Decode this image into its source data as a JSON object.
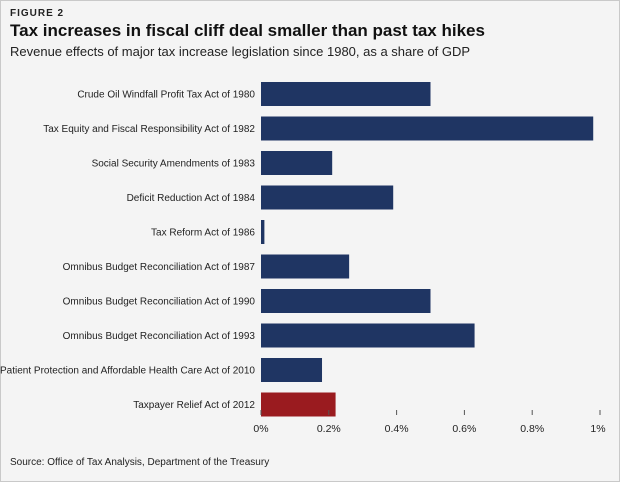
{
  "figure_label": "FIGURE 2",
  "source": "Source: Office of Tax Analysis, Department of the Treasury",
  "colors": {
    "bar": "#1f3563",
    "highlight": "#9a1b1f",
    "axis": "#555555"
  },
  "chart_data": {
    "type": "bar",
    "orientation": "horizontal",
    "title": "Tax increases in fiscal cliff deal smaller than past tax hikes",
    "subtitle": "Revenue effects of major tax increase legislation since 1980, as a share of GDP",
    "xlabel": "",
    "ylabel": "",
    "categories": [
      "Crude Oil Windfall Profit Tax Act of 1980",
      "Tax Equity and Fiscal Responsibility Act of 1982",
      "Social Security Amendments of 1983",
      "Deficit Reduction Act of 1984",
      "Tax Reform Act of 1986",
      "Omnibus Budget Reconciliation Act of 1987",
      "Omnibus Budget Reconciliation Act of 1990",
      "Omnibus Budget Reconciliation Act of 1993",
      "Patient Protection and Affordable Health Care Act of 2010",
      "Taxpayer Relief Act of 2012"
    ],
    "values": [
      0.5,
      0.98,
      0.21,
      0.39,
      0.01,
      0.26,
      0.5,
      0.63,
      0.18,
      0.22
    ],
    "highlight_index": 9,
    "xlim": [
      0,
      1.0
    ],
    "xticks": [
      0,
      0.2,
      0.4,
      0.6,
      0.8,
      1.0
    ],
    "xtick_labels": [
      "0%",
      "0.2%",
      "0.4%",
      "0.6%",
      "0.8%",
      "1%"
    ],
    "grid": false,
    "legend": "none"
  }
}
